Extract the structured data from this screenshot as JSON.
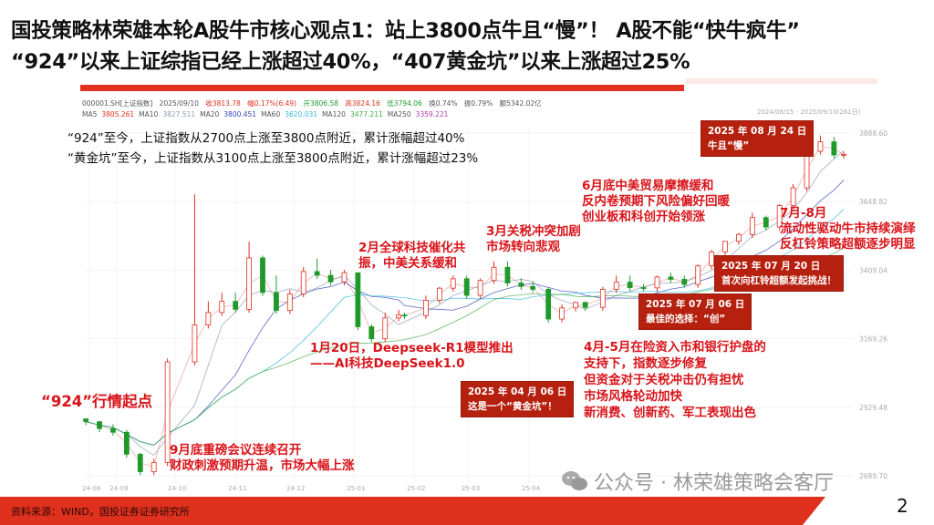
{
  "slide": {
    "title_line1": "国投策略林荣雄本轮A股牛市核心观点1：站上3800点牛且“慢”！ A股不能“快牛疯牛”",
    "title_line2": "“924”以来上证综指已经上涨超过40%，“407黄金坑”以来上涨超过25%",
    "source": "资料来源：WIND，国投证券证券研究所",
    "watermark": "公众号 · 林荣雄策略会客厅",
    "page_number": "2",
    "accent_color": "#e0301e",
    "box_color": "#b5200f"
  },
  "quote": {
    "code": "000001.SH[上证指数]",
    "date": "2025/09/10",
    "close": "收3813.78",
    "change": "幅0.17%(6.49)",
    "open": "开3806.58",
    "high": "高3824.16",
    "low": "低3794.06",
    "turnover": "换0.74%",
    "amplitude": "振0.79%",
    "amount": "额5342.02亿",
    "ma": [
      {
        "label": "MA5",
        "value": "3805.261",
        "color": "#e0301e"
      },
      {
        "label": "MA10",
        "value": "3827.511",
        "color": "#8a9bb8"
      },
      {
        "label": "MA20",
        "value": "3800.451",
        "color": "#3344bb"
      },
      {
        "label": "MA60",
        "value": "3620.031",
        "color": "#33b8e0"
      },
      {
        "label": "MA120",
        "value": "3477.211",
        "color": "#44aa44"
      },
      {
        "label": "MA250",
        "value": "3359.221",
        "color": "#b03ab0"
      }
    ],
    "range": "2024/08/15 - 2025/09/10(261日)"
  },
  "summary": [
    "“924”至今，上证指数从2700点上涨至3800点附近，累计涨幅超过40%",
    "“黄金坑”至今，上证指数从3100点上涨至3800点附近，累计涨幅超过23%"
  ],
  "annotations": {
    "start_924": "“924”行情起点",
    "sep": [
      "9月底重磅会议连续召开",
      "财政刺激预期升温，市场大幅上涨"
    ],
    "jan": [
      "1月20日，Deepseek-R1模型推出",
      "——AI科技DeepSeek1.0"
    ],
    "feb": [
      "2月全球科技催化共",
      "振，中美关系缓和"
    ],
    "mar": [
      "3月关税冲突加剧",
      "市场转向悲观"
    ],
    "aprmay": [
      "4月-5月在险资入市和银行护盘的",
      "支持下，指数逐步修复",
      "但资金对于关税冲击仍有担忧",
      "市场风格轮动加快",
      "新消费、创新药、军工表现出色"
    ],
    "jun": [
      "6月底中美贸易摩擦缓和",
      "反内卷预期下风险偏好回暖",
      "创业板和科创开始领涨"
    ],
    "julaug": [
      "7月-8月",
      "流动性驱动牛市持续演绎",
      "反杠铃策略超额逐步明显"
    ],
    "box_0406": [
      "2025 年 04 月 06 日",
      "这是一个“黄金坑”！"
    ],
    "box_0706": [
      "2025 年 07 月 06 日",
      "最佳的选择：“创”"
    ],
    "box_0720": [
      "2025 年 07 月 20 日",
      "首次向杠铃超额发起挑战！"
    ],
    "box_0824": [
      "2025 年 08 月 24 日",
      "牛且“慢”"
    ]
  },
  "chart_data": {
    "type": "candlestick",
    "y_ticks": [
      "3888.60",
      "3648.82",
      "3409.04",
      "3169.26",
      "2929.48",
      "2689.70"
    ],
    "ylim": [
      2689.7,
      3888.6
    ],
    "x_ticks": [
      "24-08",
      "24-09",
      "24-10",
      "24-11",
      "24-12",
      "25-01",
      "25-02",
      "25-03",
      "25-04"
    ],
    "up_color": "#e0301e",
    "down_color": "#1f9a2a",
    "dates": [
      "2024-08-16",
      "2024-08-23",
      "2024-08-30",
      "2024-09-06",
      "2024-09-13",
      "2024-09-20",
      "2024-09-27",
      "2024-10-11",
      "2024-10-18",
      "2024-10-25",
      "2024-11-01",
      "2024-11-08",
      "2024-11-15",
      "2024-11-22",
      "2024-11-29",
      "2024-12-06",
      "2024-12-13",
      "2024-12-20",
      "2024-12-27",
      "2025-01-03",
      "2025-01-10",
      "2025-01-17",
      "2025-01-24",
      "2025-01-27",
      "2025-02-07",
      "2025-02-14",
      "2025-02-21",
      "2025-02-28",
      "2025-03-07",
      "2025-03-14",
      "2025-03-21",
      "2025-03-28",
      "2025-04-03",
      "2025-04-11",
      "2025-04-18",
      "2025-04-25",
      "2025-04-30",
      "2025-05-09",
      "2025-05-16",
      "2025-05-23",
      "2025-05-30",
      "2025-06-06",
      "2025-06-13",
      "2025-06-20",
      "2025-06-27",
      "2025-07-04",
      "2025-07-11",
      "2025-07-18",
      "2025-07-25",
      "2025-08-01",
      "2025-08-08",
      "2025-08-15",
      "2025-08-22",
      "2025-08-29",
      "2025-09-05",
      "2025-09-10"
    ],
    "close": [
      2879,
      2855,
      2842,
      2765,
      2704,
      2736,
      3088,
      3217,
      3261,
      3300,
      3272,
      3452,
      3331,
      3268,
      3326,
      3404,
      3391,
      3368,
      3400,
      3211,
      3169,
      3242,
      3252,
      3250,
      3304,
      3346,
      3379,
      3321,
      3373,
      3419,
      3364,
      3352,
      3342,
      3238,
      3277,
      3296,
      3279,
      3342,
      3367,
      3348,
      3347,
      3385,
      3377,
      3359,
      3424,
      3473,
      3510,
      3534,
      3593,
      3560,
      3635,
      3697,
      3825,
      3858,
      3812,
      3813.78
    ],
    "high": [
      2890,
      2880,
      2870,
      2850,
      2770,
      2750,
      3100,
      3674,
      3300,
      3330,
      3330,
      3509,
      3460,
      3390,
      3340,
      3420,
      3450,
      3410,
      3410,
      3400,
      3220,
      3260,
      3270,
      3260,
      3320,
      3350,
      3390,
      3390,
      3380,
      3440,
      3440,
      3380,
      3370,
      3350,
      3290,
      3300,
      3300,
      3350,
      3390,
      3390,
      3360,
      3390,
      3400,
      3390,
      3430,
      3480,
      3510,
      3540,
      3610,
      3600,
      3640,
      3710,
      3830,
      3880,
      3875,
      3824
    ]
  }
}
